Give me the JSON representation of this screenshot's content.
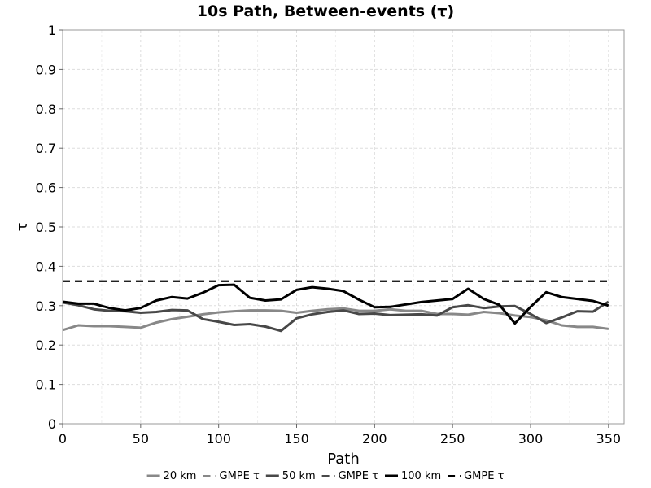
{
  "chart_data": {
    "type": "line",
    "title": "10s Path, Between-events (τ)",
    "xlabel": "Path",
    "ylabel": "τ",
    "xlim": [
      0,
      360
    ],
    "ylim": [
      0,
      1
    ],
    "xticks": [
      0,
      50,
      100,
      150,
      200,
      250,
      300,
      350
    ],
    "yticks": [
      0,
      0.1,
      0.2,
      0.3,
      0.4,
      0.5,
      0.6,
      0.7,
      0.8,
      0.9,
      1
    ],
    "ytick_labels": [
      "0",
      "0.1",
      "0.2",
      "0.3",
      "0.4",
      "0.5",
      "0.6",
      "0.7",
      "0.8",
      "0.9",
      "1"
    ],
    "grid": true,
    "legend_position": "bottom",
    "x": [
      0,
      10,
      20,
      30,
      40,
      50,
      60,
      70,
      80,
      90,
      100,
      110,
      120,
      130,
      140,
      150,
      160,
      170,
      180,
      190,
      200,
      210,
      220,
      230,
      240,
      250,
      260,
      270,
      280,
      290,
      300,
      310,
      320,
      330,
      340,
      350
    ],
    "series": [
      {
        "name": "20 km",
        "color": "#888888",
        "style": "solid",
        "values": [
          0.238,
          0.25,
          0.248,
          0.248,
          0.246,
          0.244,
          0.257,
          0.266,
          0.272,
          0.278,
          0.283,
          0.286,
          0.288,
          0.288,
          0.287,
          0.282,
          0.287,
          0.291,
          0.293,
          0.287,
          0.287,
          0.291,
          0.287,
          0.287,
          0.279,
          0.279,
          0.277,
          0.284,
          0.281,
          0.275,
          0.271,
          0.263,
          0.25,
          0.246,
          0.246,
          0.241
        ]
      },
      {
        "name": "GMPE τ",
        "color": "#888888",
        "style": "dashed",
        "values": [
          0.362,
          0.362,
          0.362,
          0.362,
          0.362,
          0.362,
          0.362,
          0.362,
          0.362,
          0.362,
          0.362,
          0.362,
          0.362,
          0.362,
          0.362,
          0.362,
          0.362,
          0.362,
          0.362,
          0.362,
          0.362,
          0.362,
          0.362,
          0.362,
          0.362,
          0.362,
          0.362,
          0.362,
          0.362,
          0.362,
          0.362,
          0.362,
          0.362,
          0.362,
          0.362,
          0.362
        ]
      },
      {
        "name": "50 km",
        "color": "#484848",
        "style": "solid",
        "values": [
          0.308,
          0.301,
          0.291,
          0.287,
          0.286,
          0.282,
          0.284,
          0.289,
          0.288,
          0.266,
          0.259,
          0.251,
          0.253,
          0.247,
          0.236,
          0.268,
          0.278,
          0.284,
          0.288,
          0.279,
          0.28,
          0.276,
          0.277,
          0.278,
          0.275,
          0.296,
          0.301,
          0.294,
          0.298,
          0.299,
          0.279,
          0.256,
          0.27,
          0.286,
          0.285,
          0.31
        ]
      },
      {
        "name": "GMPE τ",
        "color": "#484848",
        "style": "dashed",
        "values": [
          0.362,
          0.362,
          0.362,
          0.362,
          0.362,
          0.362,
          0.362,
          0.362,
          0.362,
          0.362,
          0.362,
          0.362,
          0.362,
          0.362,
          0.362,
          0.362,
          0.362,
          0.362,
          0.362,
          0.362,
          0.362,
          0.362,
          0.362,
          0.362,
          0.362,
          0.362,
          0.362,
          0.362,
          0.362,
          0.362,
          0.362,
          0.362,
          0.362,
          0.362,
          0.362,
          0.362
        ]
      },
      {
        "name": "100 km",
        "color": "#000000",
        "style": "solid",
        "values": [
          0.31,
          0.305,
          0.305,
          0.294,
          0.288,
          0.294,
          0.313,
          0.322,
          0.318,
          0.333,
          0.352,
          0.353,
          0.32,
          0.313,
          0.316,
          0.34,
          0.347,
          0.343,
          0.337,
          0.315,
          0.296,
          0.297,
          0.303,
          0.309,
          0.313,
          0.317,
          0.343,
          0.317,
          0.302,
          0.255,
          0.297,
          0.334,
          0.322,
          0.317,
          0.312,
          0.3
        ]
      },
      {
        "name": "GMPE τ",
        "color": "#000000",
        "style": "dashed",
        "values": [
          0.362,
          0.362,
          0.362,
          0.362,
          0.362,
          0.362,
          0.362,
          0.362,
          0.362,
          0.362,
          0.362,
          0.362,
          0.362,
          0.362,
          0.362,
          0.362,
          0.362,
          0.362,
          0.362,
          0.362,
          0.362,
          0.362,
          0.362,
          0.362,
          0.362,
          0.362,
          0.362,
          0.362,
          0.362,
          0.362,
          0.362,
          0.362,
          0.362,
          0.362,
          0.362,
          0.362
        ]
      }
    ]
  }
}
